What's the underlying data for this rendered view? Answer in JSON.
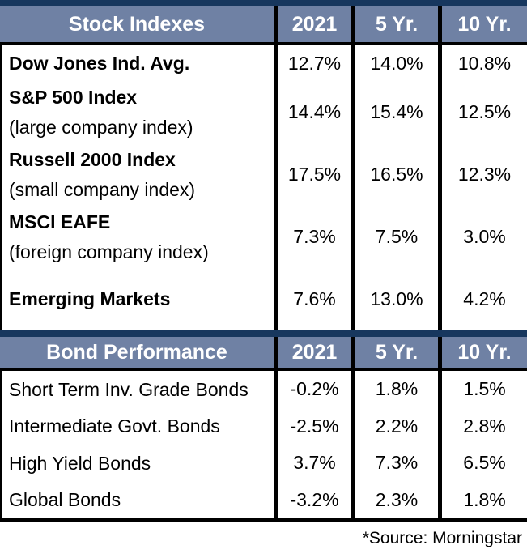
{
  "colors": {
    "navy_accent": "#17375E",
    "header_background": "#6F81A4",
    "grid_line": "#000000",
    "header_text": "#FFFFFF",
    "body_text": "#000000"
  },
  "stock_table": {
    "title": "Stock Indexes",
    "columns": [
      "2021",
      "5 Yr.",
      "10 Yr."
    ],
    "rows": [
      {
        "name": "Dow Jones Ind. Avg.",
        "subtitle": "",
        "values": [
          "12.7%",
          "14.0%",
          "10.8%"
        ]
      },
      {
        "name": "S&P 500 Index",
        "subtitle": "(large company index)",
        "values": [
          "14.4%",
          "15.4%",
          "12.5%"
        ]
      },
      {
        "name": "Russell 2000 Index",
        "subtitle": "(small company index)",
        "values": [
          "17.5%",
          "16.5%",
          "12.3%"
        ]
      },
      {
        "name": "MSCI EAFE",
        "subtitle": "(foreign company index)",
        "values": [
          "7.3%",
          "7.5%",
          "3.0%"
        ]
      },
      {
        "name": "Emerging Markets",
        "subtitle": "",
        "values": [
          "7.6%",
          "13.0%",
          "4.2%"
        ]
      }
    ]
  },
  "bond_table": {
    "title": "Bond Performance",
    "columns": [
      "2021",
      "5 Yr.",
      "10 Yr."
    ],
    "rows": [
      {
        "name": "Short Term Inv. Grade Bonds",
        "values": [
          "-0.2%",
          "1.8%",
          "1.5%"
        ]
      },
      {
        "name": "Intermediate Govt. Bonds",
        "values": [
          "-2.5%",
          "2.2%",
          "2.8%"
        ]
      },
      {
        "name": "High Yield Bonds",
        "values": [
          "3.7%",
          "7.3%",
          "6.5%"
        ]
      },
      {
        "name": "Global Bonds",
        "values": [
          "-3.2%",
          "2.3%",
          "1.8%"
        ]
      }
    ]
  },
  "footer": {
    "source_note": "*Source: Morningstar"
  },
  "chart_data": [
    {
      "type": "table",
      "title": "Stock Indexes",
      "columns": [
        "2021",
        "5 Yr.",
        "10 Yr."
      ],
      "rows": [
        {
          "label": "Dow Jones Ind. Avg.",
          "values": [
            12.7,
            14.0,
            10.8
          ]
        },
        {
          "label": "S&P 500 Index (large company index)",
          "values": [
            14.4,
            15.4,
            12.5
          ]
        },
        {
          "label": "Russell 2000 Index (small company index)",
          "values": [
            17.5,
            16.5,
            12.3
          ]
        },
        {
          "label": "MSCI EAFE (foreign company index)",
          "values": [
            7.3,
            7.5,
            3.0
          ]
        },
        {
          "label": "Emerging Markets",
          "values": [
            7.6,
            13.0,
            4.2
          ]
        }
      ],
      "value_unit": "%"
    },
    {
      "type": "table",
      "title": "Bond Performance",
      "columns": [
        "2021",
        "5 Yr.",
        "10 Yr."
      ],
      "rows": [
        {
          "label": "Short Term Inv. Grade Bonds",
          "values": [
            -0.2,
            1.8,
            1.5
          ]
        },
        {
          "label": "Intermediate Govt. Bonds",
          "values": [
            -2.5,
            2.2,
            2.8
          ]
        },
        {
          "label": "High Yield Bonds",
          "values": [
            3.7,
            7.3,
            6.5
          ]
        },
        {
          "label": "Global Bonds",
          "values": [
            -3.2,
            2.3,
            1.8
          ]
        }
      ],
      "value_unit": "%"
    }
  ]
}
